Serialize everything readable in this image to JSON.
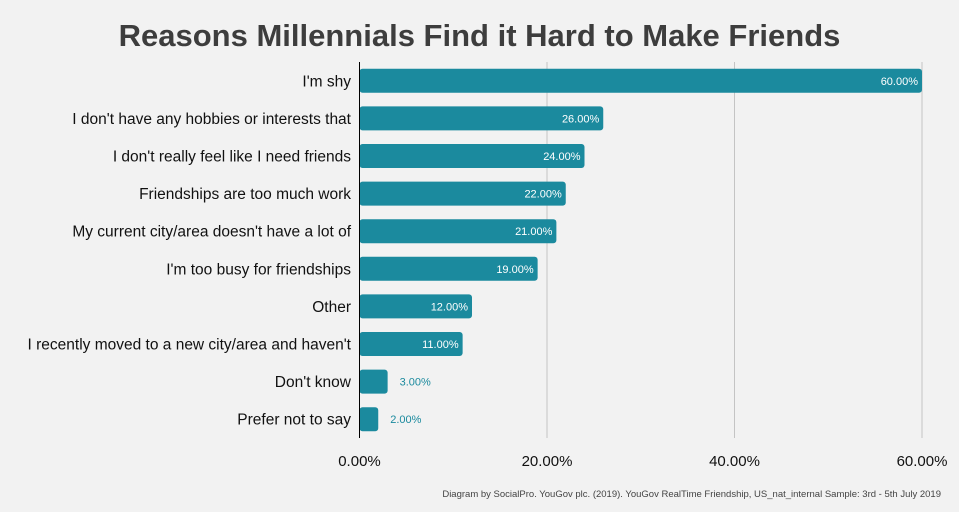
{
  "chart_data": {
    "type": "bar",
    "orientation": "horizontal",
    "title": "Reasons Millennials Find it Hard to Make Friends",
    "categories": [
      "I'm shy",
      "I don't have any hobbies or interests that",
      "I don't really feel like I need friends",
      "Friendships are too much work",
      "My current city/area doesn't have a lot of",
      "I'm too busy for friendships",
      "Other",
      "I recently moved to a new city/area and haven't",
      "Don't know",
      "Prefer not to say"
    ],
    "values": [
      60,
      26,
      24,
      22,
      21,
      19,
      12,
      11,
      3,
      2
    ],
    "data_labels": [
      "60.00%",
      "26.00%",
      "24.00%",
      "22.00%",
      "21.00%",
      "19.00%",
      "12.00%",
      "11.00%",
      "3.00%",
      "2.00%"
    ],
    "x_ticks": [
      0,
      20,
      40,
      60
    ],
    "x_tick_labels": [
      "0.00%",
      "20.00%",
      "40.00%",
      "60.00%"
    ],
    "xlim": [
      0,
      60
    ],
    "grid": "vertical",
    "bar_color": "#1b8a9e",
    "outside_label_color": "#1b8a9e",
    "inside_label_color": "#ffffff",
    "source": "Diagram by SocialPro. YouGov plc. (2019). YouGov RealTime Friendship, US_nat_internal Sample: 3rd - 5th July 2019"
  }
}
